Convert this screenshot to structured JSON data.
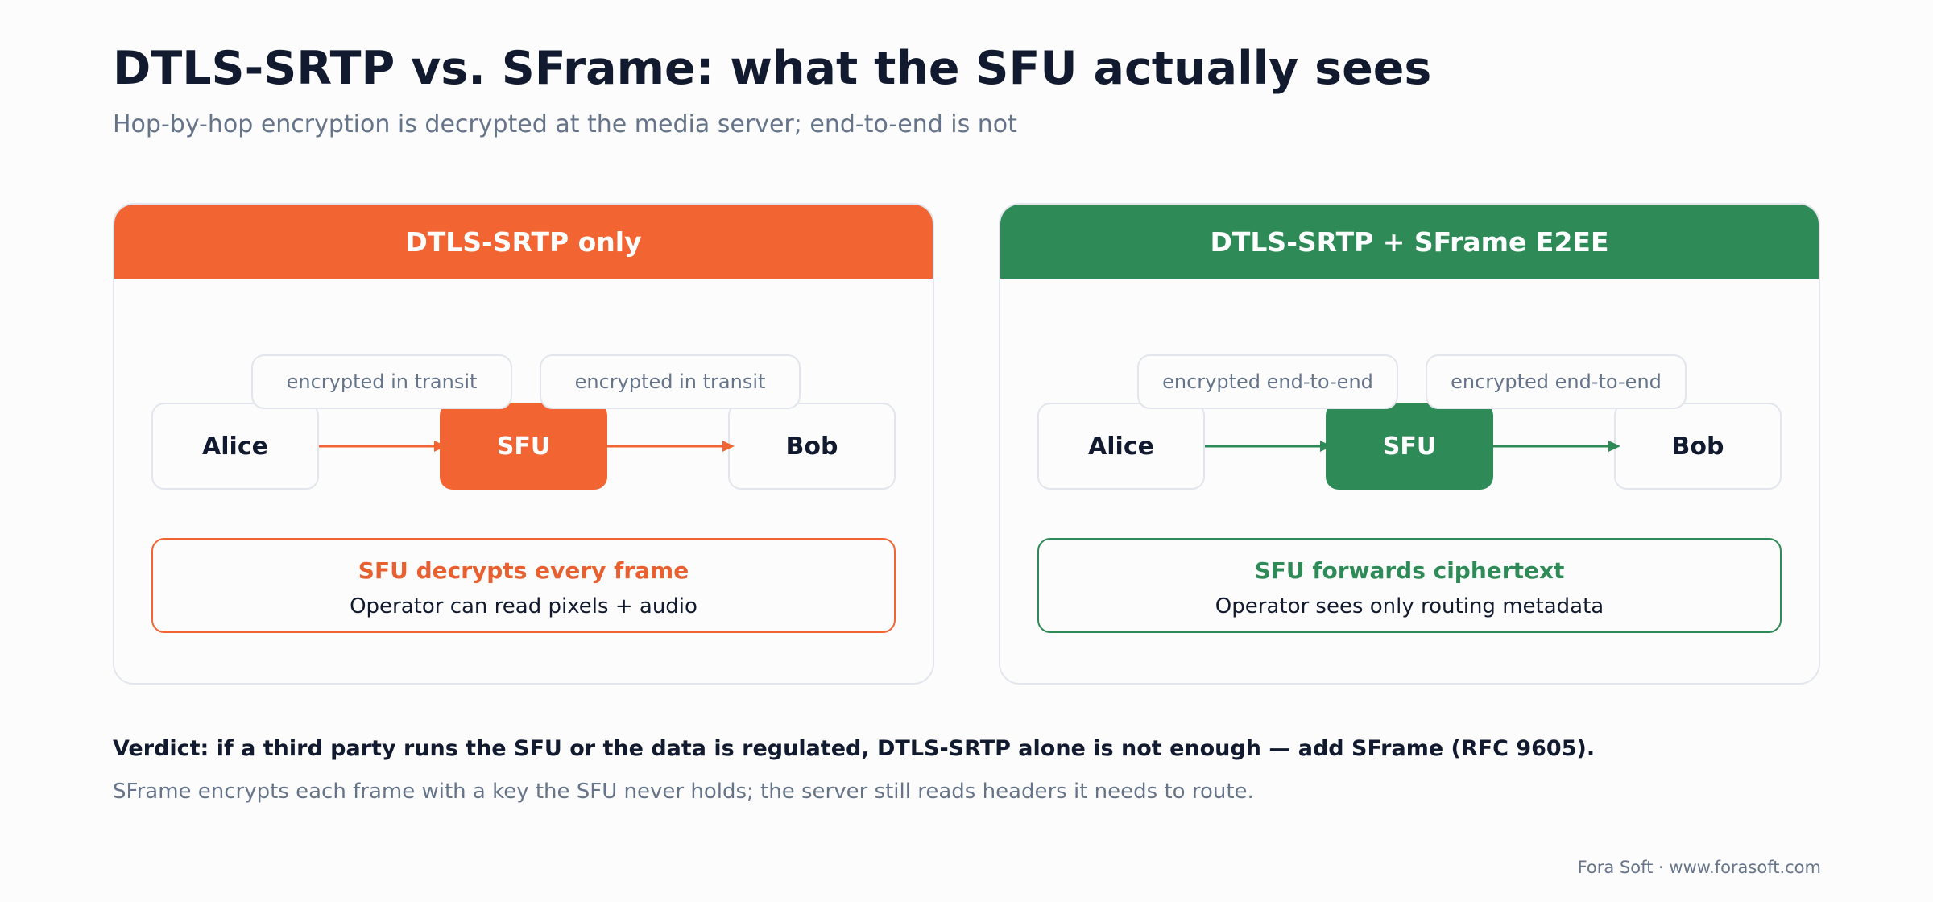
{
  "title": "DTLS-SRTP vs. SFrame: what the SFU actually sees",
  "subtitle": "Hop-by-hop encryption is decrypted at the media server; end-to-end is not",
  "panels": [
    {
      "header": "DTLS-SRTP only",
      "accent_color": "#f26532",
      "nodes": [
        "Alice",
        "SFU",
        "Bob"
      ],
      "link_labels": [
        "encrypted in transit",
        "encrypted in transit"
      ],
      "result_title": "SFU decrypts every frame",
      "result_detail": "Operator can read pixels + audio"
    },
    {
      "header": "DTLS-SRTP + SFrame E2EE",
      "accent_color": "#2e8b57",
      "nodes": [
        "Alice",
        "SFU",
        "Bob"
      ],
      "link_labels": [
        "encrypted end-to-end",
        "encrypted end-to-end"
      ],
      "result_title": "SFU forwards ciphertext",
      "result_detail": "Operator sees only routing metadata"
    }
  ],
  "verdict": "Verdict: if a third party runs the SFU or the data is regulated, DTLS-SRTP alone is not enough — add SFrame (RFC 9605).",
  "note": "SFrame encrypts each frame with a key the SFU never holds; the server still reads headers it needs to route.",
  "footer": "Fora Soft · www.forasoft.com"
}
